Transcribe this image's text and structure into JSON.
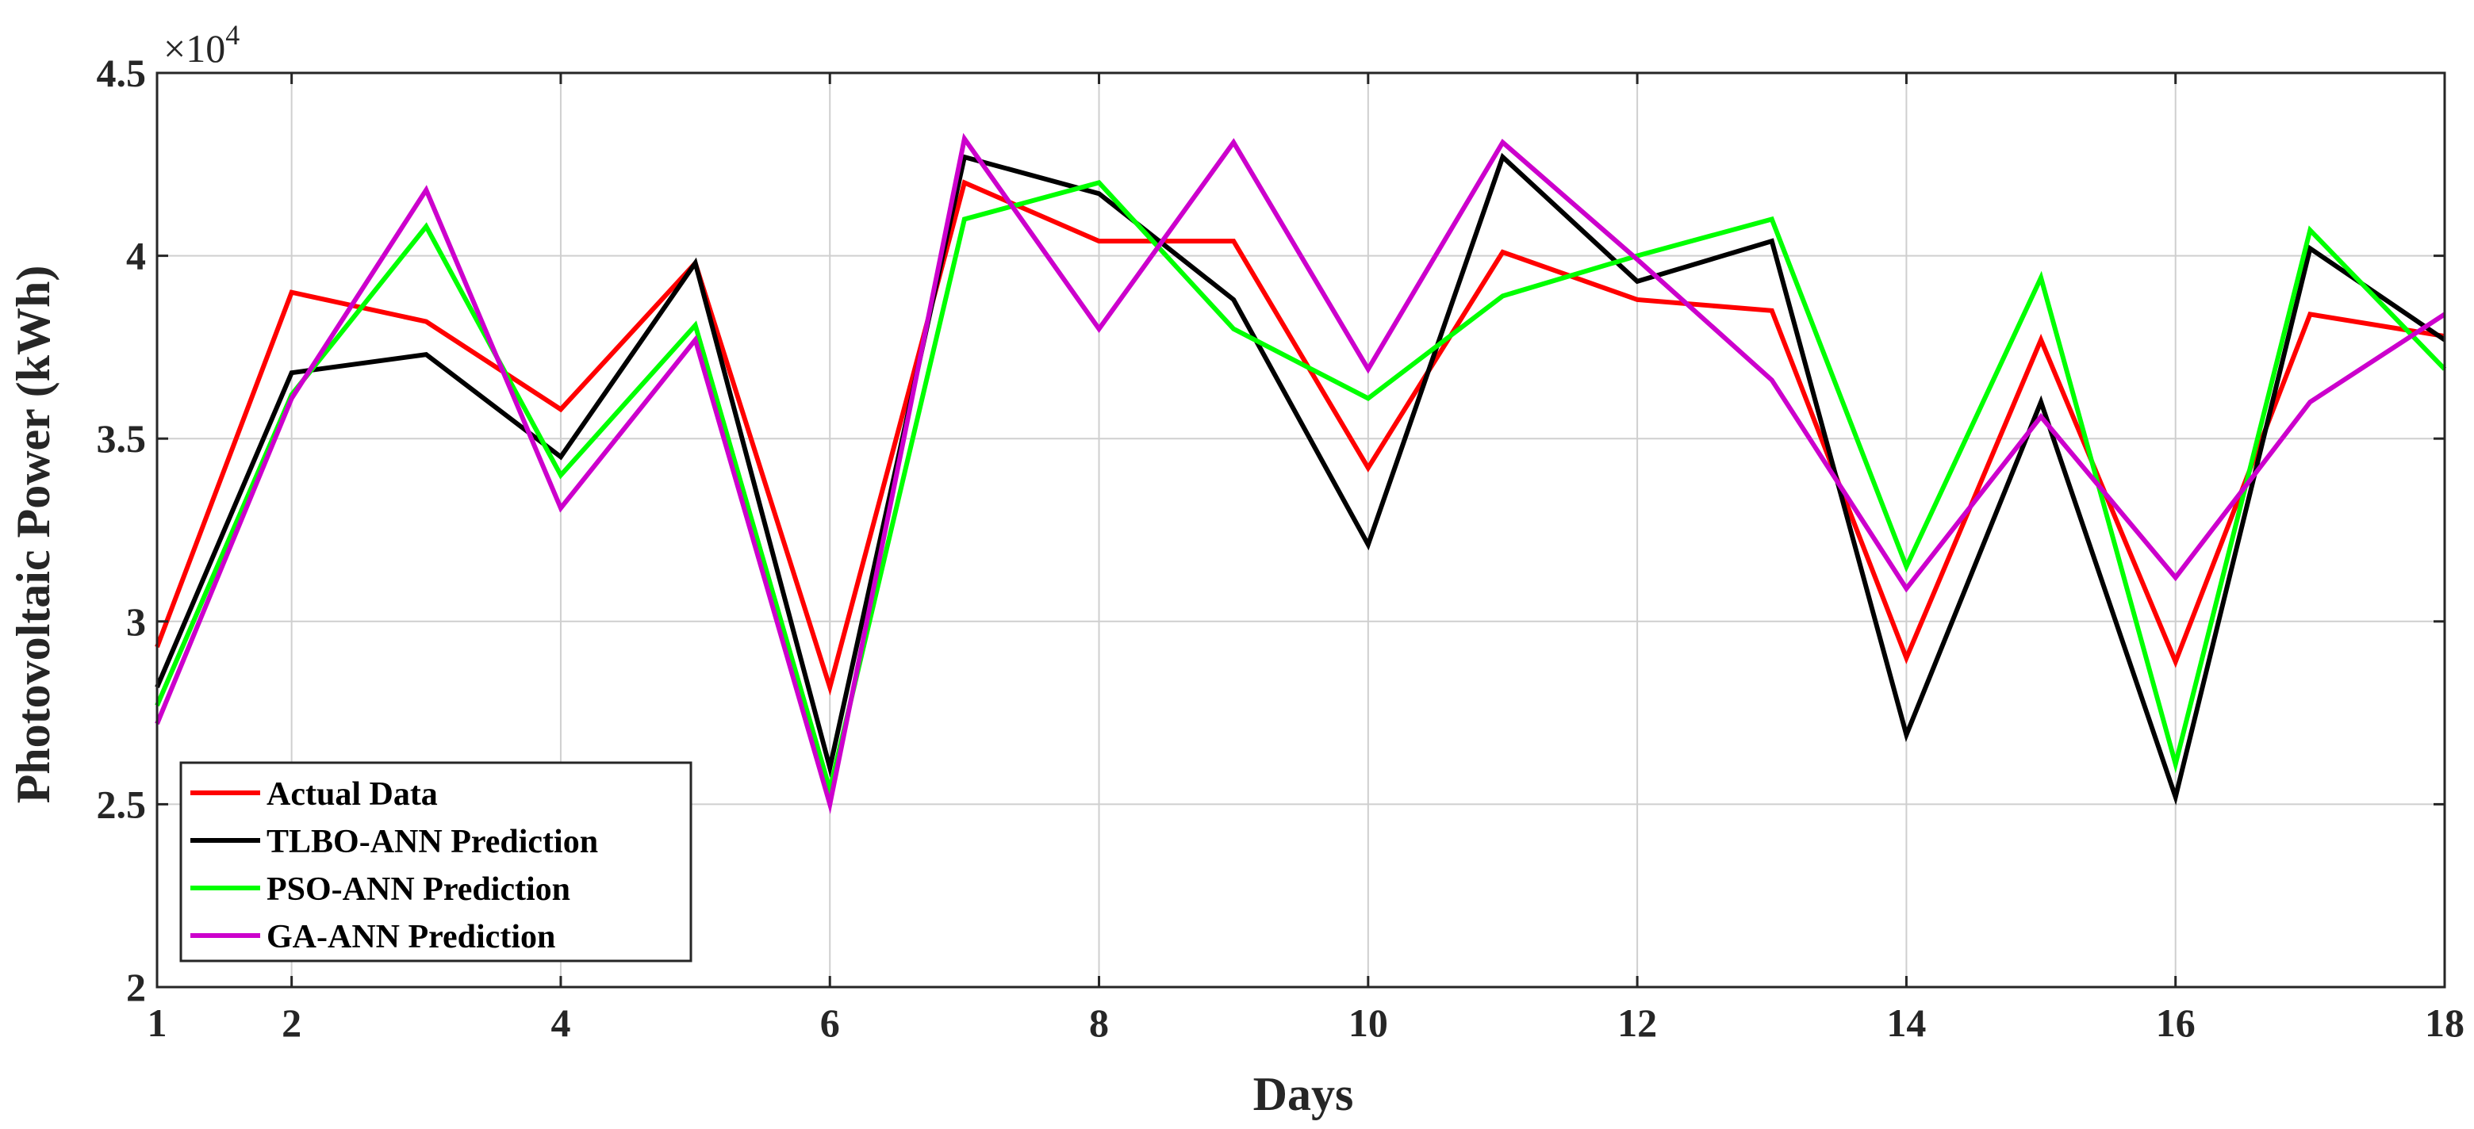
{
  "chart_data": {
    "type": "line",
    "xlabel": "Days",
    "ylabel": "Photovoltaic Power (kWh)",
    "y_exponent": {
      "base": "×10",
      "power": "4"
    },
    "xlim": [
      1,
      18
    ],
    "ylim": [
      2.0,
      4.5
    ],
    "x_ticks": [
      1,
      2,
      4,
      6,
      8,
      10,
      12,
      14,
      16,
      18
    ],
    "x_tick_labels": [
      "1",
      "2",
      "4",
      "6",
      "8",
      "10",
      "12",
      "14",
      "16",
      "18"
    ],
    "y_ticks": [
      2,
      2.5,
      3,
      3.5,
      4,
      4.5
    ],
    "y_tick_labels": [
      "2",
      "2.5",
      "3",
      "3.5",
      "4",
      "4.5"
    ],
    "grid": true,
    "legend_position": "bottom-left",
    "x": [
      1,
      2,
      3,
      4,
      5,
      6,
      7,
      8,
      9,
      10,
      11,
      12,
      13,
      14,
      15,
      16,
      17,
      18
    ],
    "series": [
      {
        "name": "Actual Data",
        "color": "#ff0000",
        "values": [
          2.93,
          3.9,
          3.82,
          3.58,
          3.98,
          2.82,
          4.2,
          4.04,
          4.04,
          3.42,
          4.01,
          3.88,
          3.85,
          2.9,
          3.77,
          2.89,
          3.84,
          3.78
        ]
      },
      {
        "name": "TLBO-ANN Prediction",
        "color": "#000000",
        "values": [
          2.82,
          3.68,
          3.73,
          3.45,
          3.98,
          2.6,
          4.27,
          4.17,
          3.88,
          3.21,
          4.27,
          3.93,
          4.04,
          2.69,
          3.6,
          2.52,
          4.02,
          3.77
        ]
      },
      {
        "name": "PSO-ANN Prediction",
        "color": "#00ff00",
        "values": [
          2.77,
          3.62,
          4.08,
          3.4,
          3.81,
          2.54,
          4.1,
          4.2,
          3.8,
          3.61,
          3.89,
          4.0,
          4.1,
          3.15,
          3.94,
          2.61,
          4.07,
          3.69
        ]
      },
      {
        "name": "GA-ANN Prediction",
        "color": "#cc00cc",
        "values": [
          2.72,
          3.61,
          4.18,
          3.31,
          3.77,
          2.5,
          4.32,
          3.8,
          4.31,
          3.69,
          4.31,
          3.99,
          3.66,
          3.09,
          3.56,
          3.12,
          3.6,
          3.84
        ]
      }
    ]
  }
}
